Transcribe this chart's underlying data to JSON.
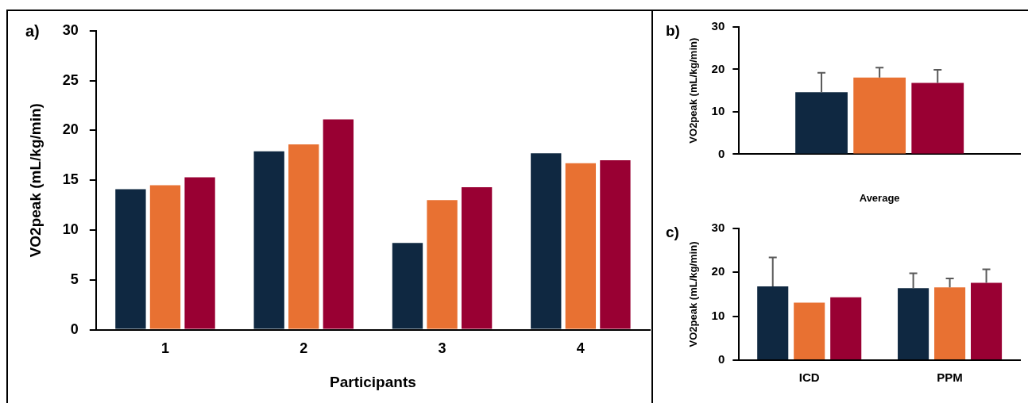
{
  "chart_data": [
    {
      "type": "bar",
      "annotations": [
        "a)"
      ],
      "xlabel": "Participants",
      "ylabel": "VO2peak (mL/kg/min)",
      "categories": [
        "1",
        "2",
        "3",
        "4"
      ],
      "ylim": [
        0,
        30
      ],
      "yticks": [
        0,
        5,
        10,
        15,
        20,
        25,
        30
      ],
      "grid": false,
      "legend": false,
      "series": [
        {
          "color": "#0f2841",
          "values": [
            14.1,
            17.9,
            8.7,
            17.7
          ]
        },
        {
          "color": "#e87132",
          "values": [
            14.5,
            18.6,
            13.0,
            16.7
          ]
        },
        {
          "color": "#990033",
          "values": [
            15.3,
            21.1,
            14.3,
            17.0
          ]
        }
      ]
    },
    {
      "type": "bar",
      "annotations": [
        "b)"
      ],
      "xlabel": "Average",
      "ylabel": "VO2peak (mL/kg/min)",
      "categories": [
        null
      ],
      "ylim": [
        0,
        30
      ],
      "yticks": [
        0,
        10,
        20,
        30
      ],
      "grid": false,
      "legend": false,
      "series": [
        {
          "color": "#0f2841",
          "values": [
            14.6
          ],
          "errors": [
            [
              14.6,
              19.2
            ]
          ]
        },
        {
          "color": "#e87132",
          "values": [
            18.1
          ],
          "errors": [
            [
              18.1,
              20.4
            ]
          ]
        },
        {
          "color": "#990033",
          "values": [
            16.8
          ],
          "errors": [
            [
              16.8,
              19.9
            ]
          ]
        }
      ]
    },
    {
      "type": "bar",
      "annotations": [
        "c)"
      ],
      "ylabel": "VO2peak (mL/kg/min)",
      "categories": [
        "ICD",
        "PPM"
      ],
      "ylim": [
        0,
        30
      ],
      "yticks": [
        0,
        10,
        20,
        30
      ],
      "grid": false,
      "legend": false,
      "series": [
        {
          "color": "#0f2841",
          "values": [
            16.8,
            16.4
          ],
          "errors": [
            [
              16.8,
              23.4
            ],
            [
              16.4,
              19.8
            ]
          ]
        },
        {
          "color": "#e87132",
          "values": [
            13.1,
            16.6
          ],
          "errors": [
            null,
            [
              16.6,
              18.6
            ]
          ]
        },
        {
          "color": "#990033",
          "values": [
            14.3,
            17.6
          ],
          "errors": [
            null,
            [
              17.6,
              20.7
            ]
          ]
        }
      ]
    }
  ]
}
